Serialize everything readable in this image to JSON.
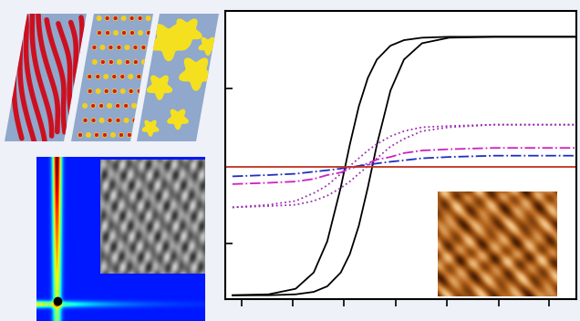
{
  "chart_data": {
    "type": "line",
    "xlim": [
      -1.48,
      2.41
    ],
    "ylim": [
      -1.03,
      1.2
    ],
    "xticks": [
      -1.3,
      -0.73,
      -0.17,
      0.41,
      0.98,
      1.55,
      2.11
    ],
    "yticks": [
      -0.6,
      0.6
    ],
    "tick_labels": false,
    "series": [
      {
        "color": "#000000",
        "line_style": "solid",
        "x": [
          -1.4,
          -1.0,
          -0.7,
          -0.5,
          -0.35,
          -0.2,
          -0.1,
          0,
          0.1,
          0.2,
          0.35,
          0.5,
          0.7,
          1.0,
          1.5,
          2.0,
          2.4
        ],
        "values": [
          -1.0,
          -0.993,
          -0.95,
          -0.824,
          -0.583,
          -0.165,
          0.165,
          0.462,
          0.682,
          0.824,
          0.931,
          0.974,
          0.993,
          1.0,
          1.0,
          1.0,
          1.0
        ]
      },
      {
        "color": "#000000",
        "line_style": "solid",
        "x": [
          -1.4,
          -1.0,
          -0.7,
          -0.5,
          -0.35,
          -0.2,
          -0.1,
          0,
          0.1,
          0.2,
          0.35,
          0.5,
          0.7,
          1.0,
          1.5,
          2.0,
          2.4
        ],
        "values": [
          -1.0,
          -1.0,
          -0.993,
          -0.974,
          -0.931,
          -0.824,
          -0.682,
          -0.462,
          -0.165,
          0.165,
          0.583,
          0.824,
          0.95,
          0.993,
          1.0,
          1.0,
          1.0
        ]
      },
      {
        "color": "#9b30b0",
        "line_style": "dotted",
        "x": [
          -1.4,
          -1.0,
          -0.7,
          -0.5,
          -0.35,
          -0.2,
          -0.1,
          0,
          0.1,
          0.2,
          0.35,
          0.5,
          0.7,
          1.0,
          1.5,
          2.0,
          2.4
        ],
        "values": [
          -0.32,
          -0.3,
          -0.27,
          -0.21,
          -0.15,
          -0.06,
          0.0,
          0.06,
          0.12,
          0.17,
          0.23,
          0.27,
          0.3,
          0.31,
          0.32,
          0.32,
          0.32
        ]
      },
      {
        "color": "#9b30b0",
        "line_style": "dotted",
        "x": [
          -1.4,
          -1.0,
          -0.7,
          -0.5,
          -0.35,
          -0.2,
          -0.1,
          0,
          0.1,
          0.2,
          0.35,
          0.5,
          0.7,
          1.0,
          1.5,
          2.0,
          2.4
        ],
        "values": [
          -0.32,
          -0.31,
          -0.3,
          -0.27,
          -0.23,
          -0.17,
          -0.12,
          -0.06,
          0.0,
          0.06,
          0.15,
          0.21,
          0.27,
          0.3,
          0.32,
          0.32,
          0.32
        ]
      },
      {
        "color": "#d020c0",
        "line_style": "dashdot",
        "x": [
          -1.4,
          -1.0,
          -0.7,
          -0.5,
          -0.35,
          -0.2,
          -0.1,
          0,
          0.1,
          0.2,
          0.35,
          0.5,
          0.7,
          1.0,
          1.5,
          2.0,
          2.4
        ],
        "values": [
          -0.14,
          -0.13,
          -0.12,
          -0.1,
          -0.07,
          -0.05,
          -0.02,
          0.0,
          0.02,
          0.05,
          0.07,
          0.1,
          0.12,
          0.13,
          0.14,
          0.14,
          0.14
        ]
      },
      {
        "color": "#2030c0",
        "line_style": "dashdot",
        "x": [
          -1.4,
          -1.0,
          -0.7,
          -0.5,
          -0.35,
          -0.2,
          -0.1,
          0,
          0.1,
          0.2,
          0.35,
          0.5,
          0.7,
          1.0,
          1.5,
          2.0,
          2.4
        ],
        "values": [
          -0.08,
          -0.07,
          -0.06,
          -0.044,
          -0.033,
          -0.02,
          -0.01,
          0.0,
          0.01,
          0.02,
          0.033,
          0.044,
          0.06,
          0.07,
          0.08,
          0.08,
          0.08
        ]
      },
      {
        "color": "#c03020",
        "line_style": "solid",
        "x": [
          -1.48,
          2.41
        ],
        "values": [
          -0.01,
          -0.01
        ]
      }
    ]
  }
}
